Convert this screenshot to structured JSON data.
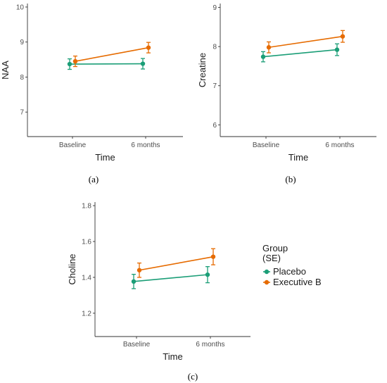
{
  "legend": {
    "title_line1": "Group",
    "title_line2": "(SE)",
    "entries": [
      "Placebo",
      "Executive B"
    ]
  },
  "colors": {
    "Placebo": "#1b9e77",
    "Executive B": "#e66b00"
  },
  "chart_data": [
    {
      "type": "line",
      "panel_label": "(a)",
      "categories": [
        "Baseline",
        "6 months"
      ],
      "xlabel": "Time",
      "ylabel": "NAA",
      "ylim": [
        6.3,
        10.1
      ],
      "yticks": [
        7,
        8,
        9,
        10
      ],
      "series": [
        {
          "name": "Placebo",
          "values": [
            8.37,
            8.38
          ],
          "se": [
            0.15,
            0.15
          ]
        },
        {
          "name": "Executive B",
          "values": [
            8.45,
            8.84
          ],
          "se": [
            0.15,
            0.15
          ]
        }
      ]
    },
    {
      "type": "line",
      "panel_label": "(b)",
      "categories": [
        "Baseline",
        "6 months"
      ],
      "xlabel": "Time",
      "ylabel": "Creatine",
      "ylim": [
        5.7,
        9.1
      ],
      "yticks": [
        6,
        7,
        8,
        9
      ],
      "series": [
        {
          "name": "Placebo",
          "values": [
            7.74,
            7.92
          ],
          "se": [
            0.13,
            0.15
          ]
        },
        {
          "name": "Executive B",
          "values": [
            7.98,
            8.26
          ],
          "se": [
            0.14,
            0.15
          ]
        }
      ]
    },
    {
      "type": "line",
      "panel_label": "(c)",
      "categories": [
        "Baseline",
        "6 months"
      ],
      "xlabel": "Time",
      "ylabel": "Choline",
      "ylim": [
        1.07,
        1.82
      ],
      "yticks": [
        1.2,
        1.4,
        1.6,
        1.8
      ],
      "series": [
        {
          "name": "Placebo",
          "values": [
            1.377,
            1.415
          ],
          "se": [
            0.04,
            0.045
          ]
        },
        {
          "name": "Executive B",
          "values": [
            1.44,
            1.515
          ],
          "se": [
            0.04,
            0.045
          ]
        }
      ]
    }
  ]
}
